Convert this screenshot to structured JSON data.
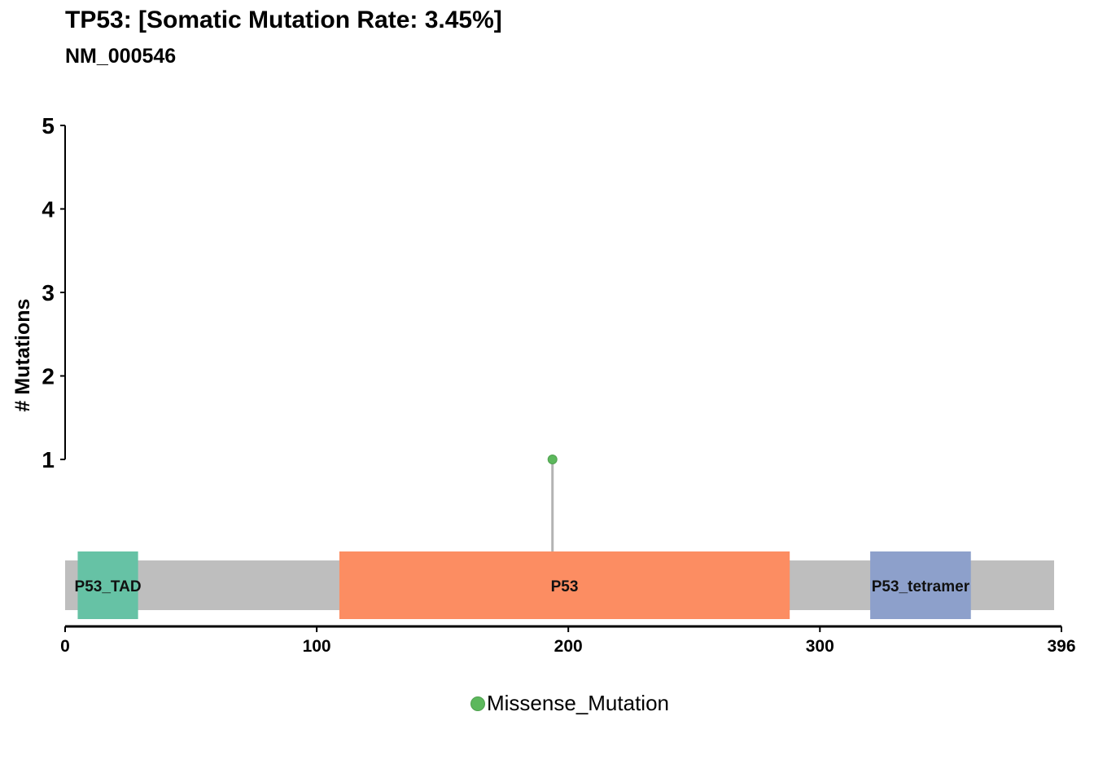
{
  "title": "TP53: [Somatic Mutation Rate: 3.45%]",
  "subtitle": "NM_000546",
  "colors": {
    "protein_bar": "#bebebe",
    "axis": "#000000",
    "lollipop_stem": "#b3b3b3"
  },
  "chart_data": {
    "type": "lollipop",
    "ylabel": "# Mutations",
    "ylim": [
      1,
      5
    ],
    "yticks": [
      1,
      2,
      3,
      4,
      5
    ],
    "xlim": [
      0,
      396
    ],
    "xticks": [
      0,
      100,
      200,
      300,
      396
    ],
    "protein_length": 396,
    "domains": [
      {
        "label": "P53_TAD",
        "start": 5,
        "end": 29,
        "color": "#66c2a5"
      },
      {
        "label": "P53",
        "start": 109,
        "end": 288,
        "color": "#fc8d62"
      },
      {
        "label": "P53_tetramer",
        "start": 320,
        "end": 360,
        "color": "#8da0cb"
      }
    ],
    "mutations": [
      {
        "position": 195,
        "count": 1,
        "type": "Missense_Mutation",
        "color": "#5cb85c"
      }
    ],
    "legend": [
      {
        "label": "Missense_Mutation",
        "color": "#5cb85c"
      }
    ]
  }
}
